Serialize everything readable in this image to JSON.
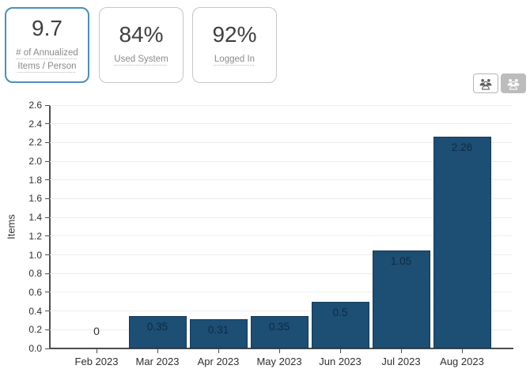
{
  "kpi_cards": [
    {
      "value": "9.7",
      "label_line1": "# of Annualized",
      "label_line2": "Items / Person",
      "selected": true
    },
    {
      "value": "84%",
      "label": "Used System",
      "selected": false
    },
    {
      "value": "92%",
      "label": "Logged In",
      "selected": false
    }
  ],
  "view_toggle": {
    "buttons": [
      {
        "icon": "people-group-icon",
        "active": false
      },
      {
        "icon": "people-group-icon",
        "active": true
      }
    ]
  },
  "colors": {
    "selected_card_border": "#4a8fc0",
    "card_border": "#c6c6c6",
    "kpi_value_text": "#3f3f3f",
    "kpi_label_text": "#8a8a8a",
    "bar_fill": "#1d4e74",
    "bar_border": "#143a57",
    "bar_value_text": "#0f2a42",
    "axis_text": "#2f2f2f",
    "axis_line": "#4d4d4d",
    "gridline": "#ececec",
    "toggle_active_bg": "#bcbcbc",
    "toggle_icon_gray": "#5f5f5f"
  },
  "chart_data": {
    "type": "bar",
    "categories": [
      "Feb 2023",
      "Mar 2023",
      "Apr 2023",
      "May 2023",
      "Jun 2023",
      "Jul 2023",
      "Aug 2023"
    ],
    "values": [
      0,
      0.35,
      0.31,
      0.35,
      0.5,
      1.05,
      2.26
    ],
    "value_labels": [
      "0",
      "0.35",
      "0.31",
      "0.35",
      "0.5",
      "1.05",
      "2.26"
    ],
    "title": "",
    "xlabel": "",
    "ylabel": "Items",
    "ylim": [
      0,
      2.6
    ],
    "ytick_step": 0.2,
    "grid": true,
    "legend": false,
    "bar_color": "#1d4e74"
  }
}
